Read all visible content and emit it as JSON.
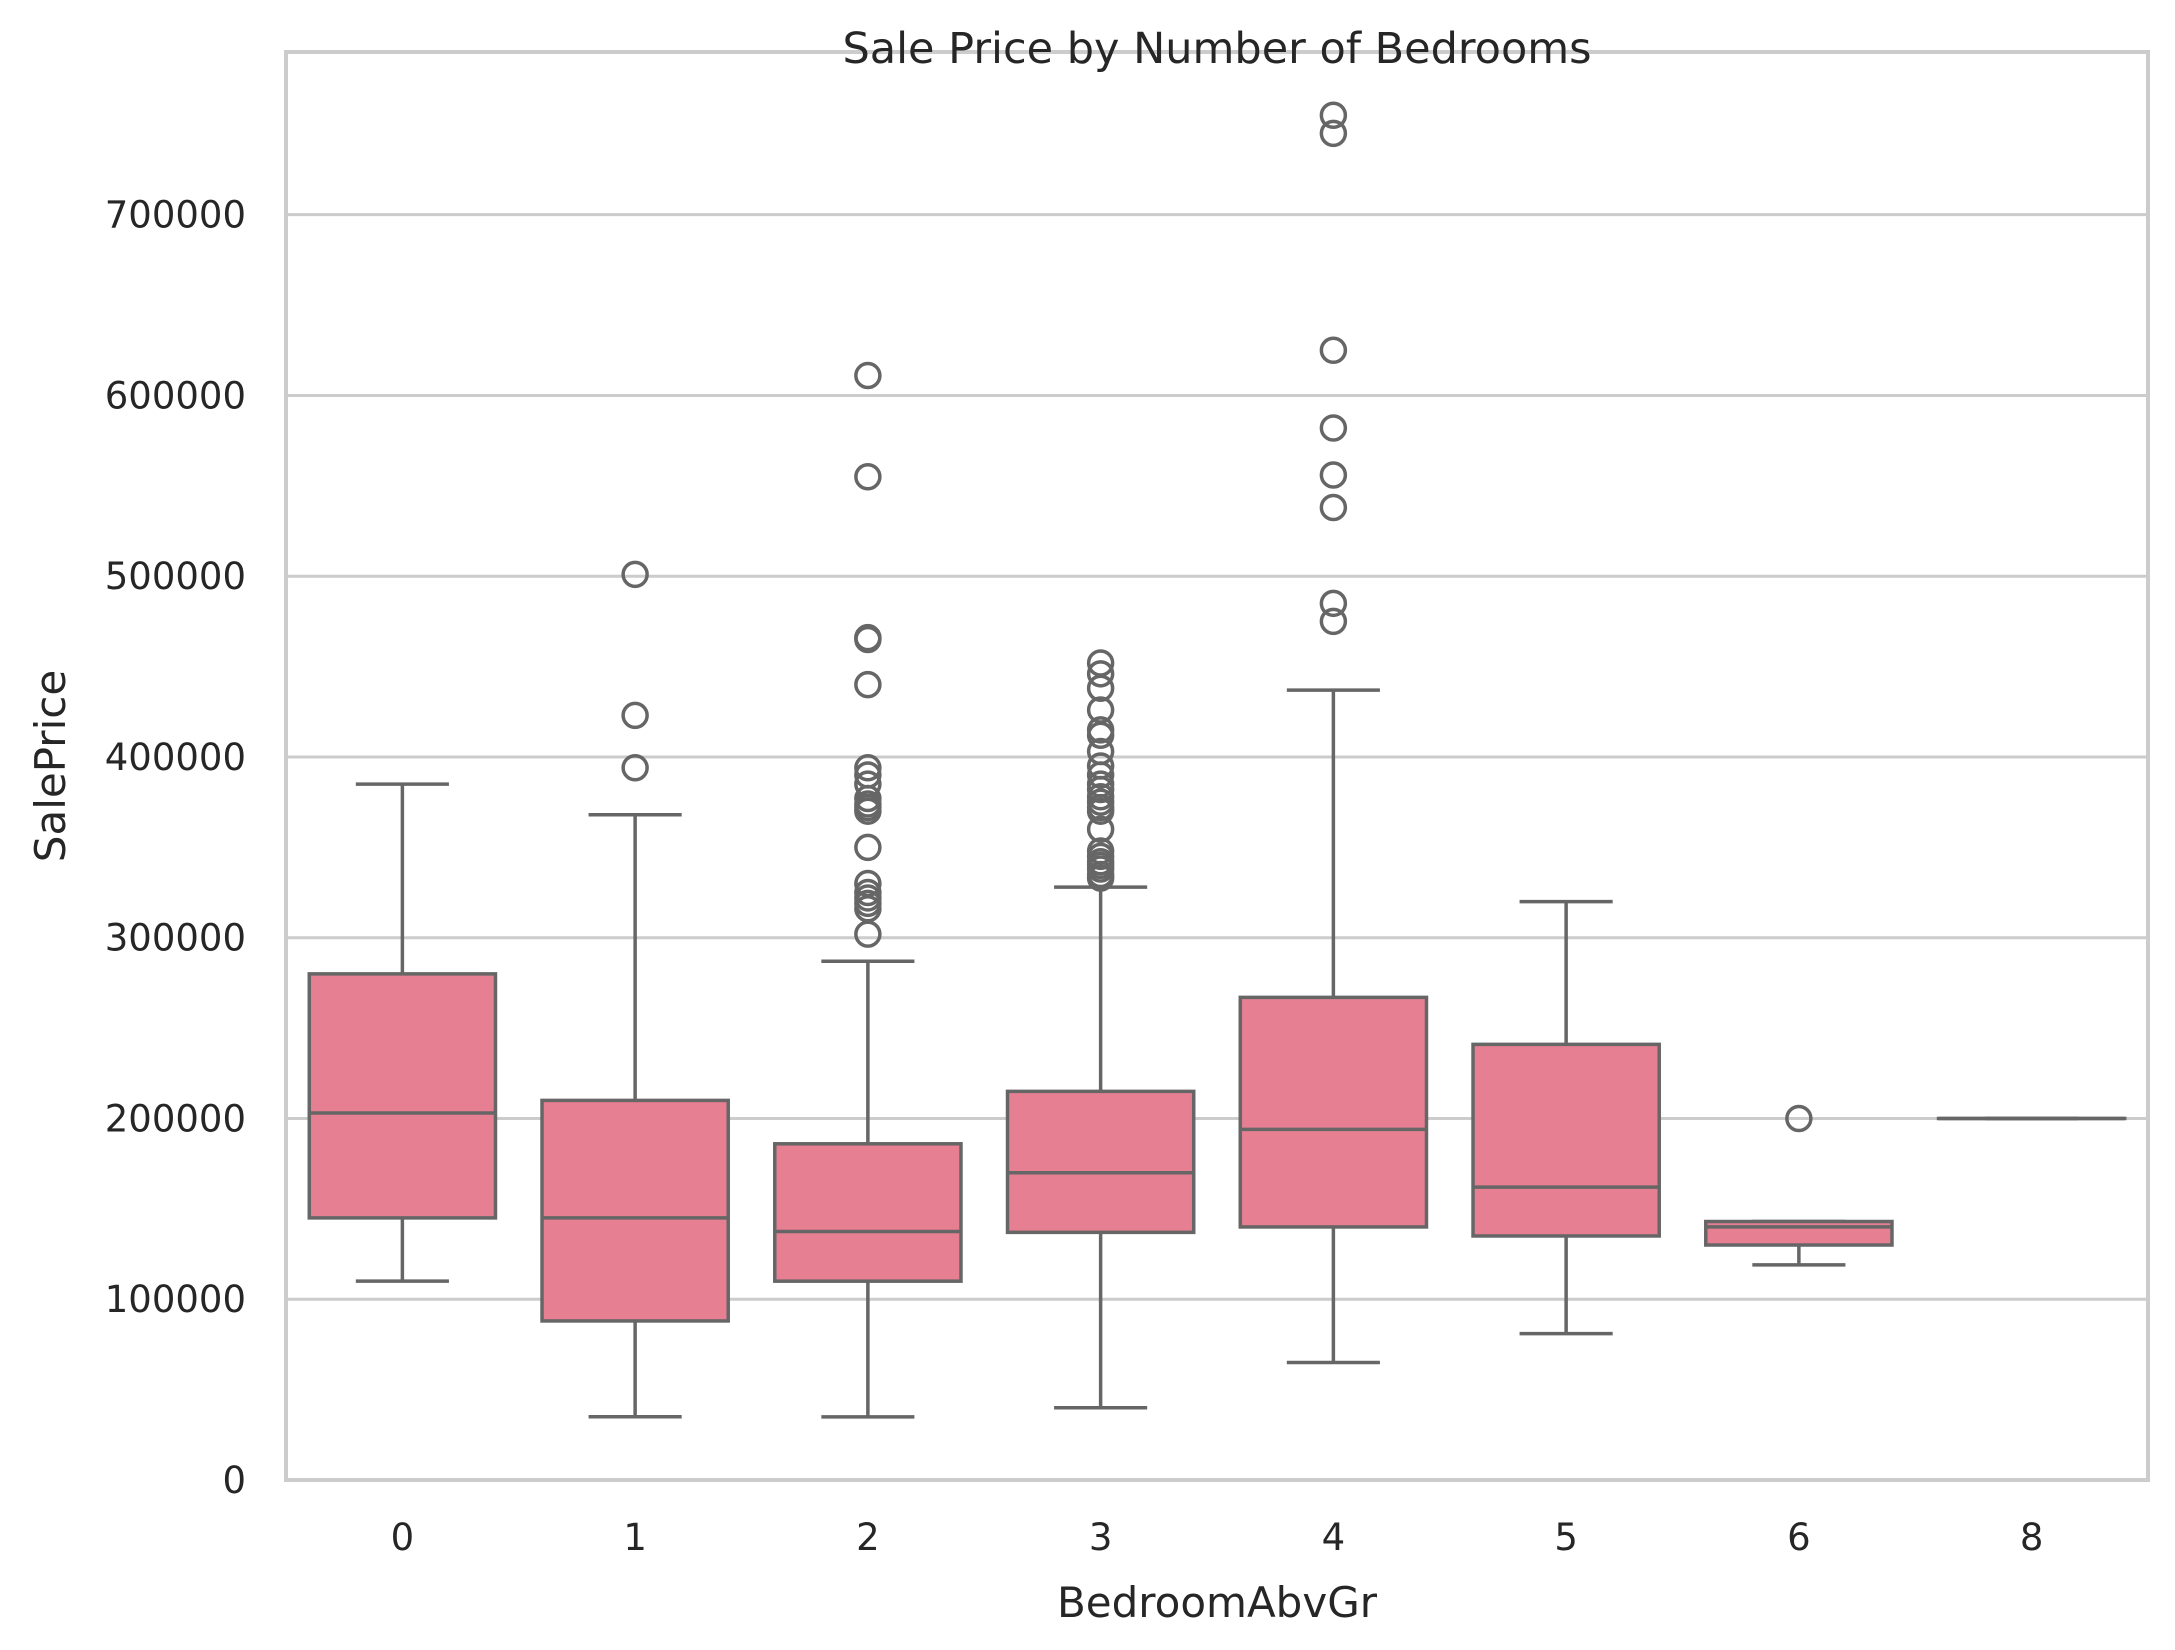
{
  "chart_data": {
    "type": "box",
    "title": "Sale Price by Number of Bedrooms",
    "xlabel": "BedroomAbvGr",
    "ylabel": "SalePrice",
    "ylim": [
      0,
      790000
    ],
    "yticks": [
      0,
      100000,
      200000,
      300000,
      400000,
      500000,
      600000,
      700000
    ],
    "ytick_labels": [
      "0",
      "100000",
      "200000",
      "300000",
      "400000",
      "500000",
      "600000",
      "700000"
    ],
    "grid": true,
    "box_color": "#e67f92",
    "line_color": "#666666",
    "categories": [
      "0",
      "1",
      "2",
      "3",
      "4",
      "5",
      "6",
      "8"
    ],
    "boxes": [
      {
        "category": "0",
        "whisker_low": 110000,
        "q1": 145000,
        "median": 203000,
        "q3": 280000,
        "whisker_high": 385000,
        "outliers": []
      },
      {
        "category": "1",
        "whisker_low": 35000,
        "q1": 88000,
        "median": 145000,
        "q3": 210000,
        "whisker_high": 368000,
        "outliers": [
          394000,
          423000,
          501000
        ]
      },
      {
        "category": "2",
        "whisker_low": 34900,
        "q1": 110000,
        "median": 137500,
        "q3": 186000,
        "whisker_high": 287000,
        "outliers": [
          302000,
          316000,
          319000,
          322000,
          325000,
          330000,
          350000,
          370000,
          372000,
          374000,
          377000,
          385000,
          390000,
          394000,
          440000,
          465000,
          466000,
          555000,
          611000
        ]
      },
      {
        "category": "3",
        "whisker_low": 40000,
        "q1": 137000,
        "median": 170000,
        "q3": 215000,
        "whisker_high": 328000,
        "outliers": [
          333000,
          335000,
          338000,
          340000,
          342000,
          345000,
          348000,
          360000,
          370000,
          372000,
          375000,
          378000,
          382000,
          385000,
          390000,
          395000,
          403000,
          412000,
          415000,
          426000,
          438000,
          446000,
          452000
        ]
      },
      {
        "category": "4",
        "whisker_low": 65000,
        "q1": 140000,
        "median": 194000,
        "q3": 267000,
        "whisker_high": 437000,
        "outliers": [
          475000,
          485000,
          538000,
          556000,
          582000,
          625000,
          745000,
          755000
        ]
      },
      {
        "category": "5",
        "whisker_low": 81000,
        "q1": 135000,
        "median": 162000,
        "q3": 241000,
        "whisker_high": 320000,
        "outliers": []
      },
      {
        "category": "6",
        "whisker_low": 119000,
        "q1": 130000,
        "median": 140000,
        "q3": 143000,
        "whisker_high": 143000,
        "outliers": [
          200000
        ]
      },
      {
        "category": "8",
        "whisker_low": 200000,
        "q1": 200000,
        "median": 200000,
        "q3": 200000,
        "whisker_high": 200000,
        "outliers": []
      }
    ]
  }
}
